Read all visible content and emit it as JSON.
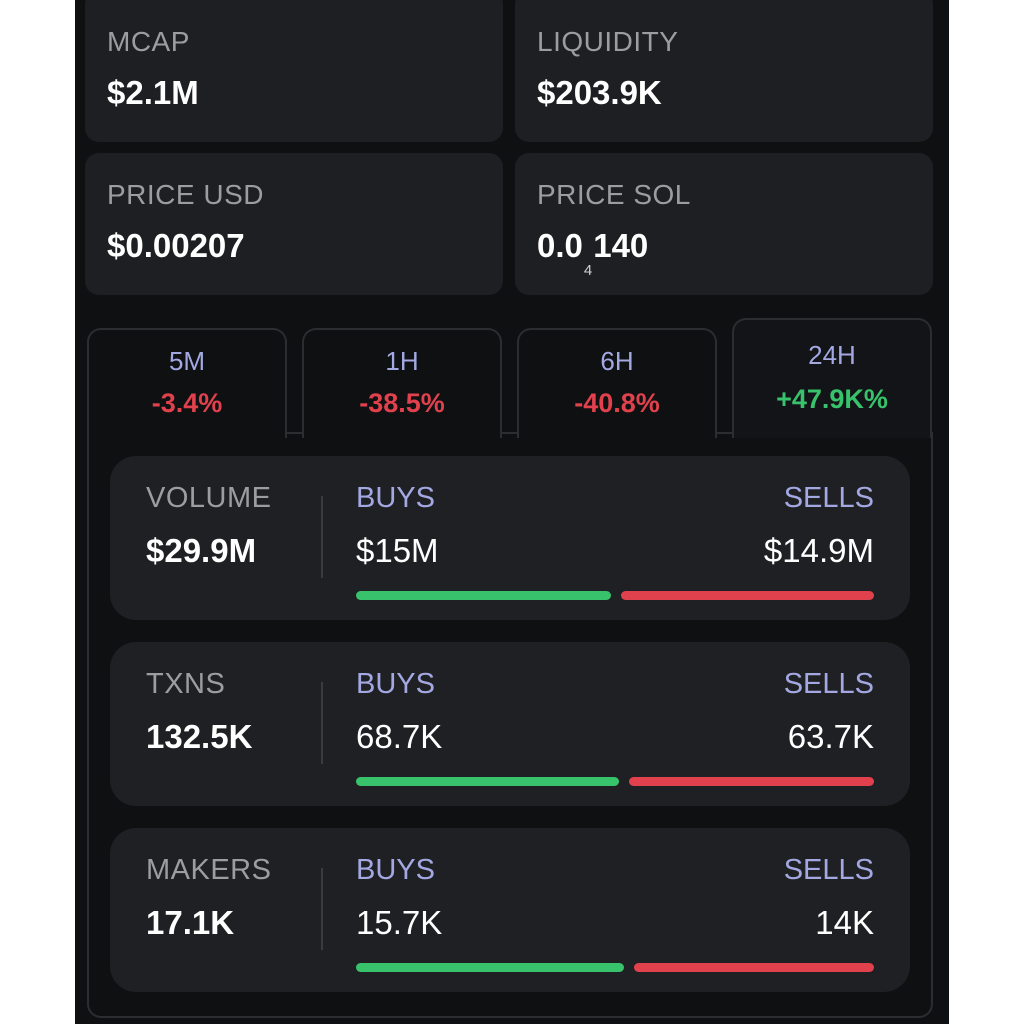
{
  "stats": {
    "mcap": {
      "label": "MCAP",
      "value": "$2.1M"
    },
    "liquidity": {
      "label": "LIQUIDITY",
      "value": "$203.9K"
    },
    "price_usd": {
      "label": "PRICE USD",
      "value": "$0.00207"
    },
    "price_sol": {
      "label": "PRICE SOL",
      "value_prefix": "0.0",
      "value_sub": "4",
      "value_suffix": "140"
    }
  },
  "tabs": [
    {
      "label": "5M",
      "change": "-3.4%",
      "direction": "negative",
      "active": false
    },
    {
      "label": "1H",
      "change": "-38.5%",
      "direction": "negative",
      "active": false
    },
    {
      "label": "6H",
      "change": "-40.8%",
      "direction": "negative",
      "active": false
    },
    {
      "label": "24H",
      "change": "+47.9K%",
      "direction": "positive",
      "active": true
    }
  ],
  "rows": [
    {
      "label": "VOLUME",
      "value": "$29.9M",
      "buys_label": "BUYS",
      "buys": "$15M",
      "sells_label": "SELLS",
      "sells": "$14.9M",
      "buy_ratio": 0.502
    },
    {
      "label": "TXNS",
      "value": "132.5K",
      "buys_label": "BUYS",
      "buys": "68.7K",
      "sells_label": "SELLS",
      "sells": "63.7K",
      "buy_ratio": 0.518
    },
    {
      "label": "MAKERS",
      "value": "17.1K",
      "buys_label": "BUYS",
      "buys": "15.7K",
      "sells_label": "SELLS",
      "sells": "14K",
      "buy_ratio": 0.528
    }
  ],
  "colors": {
    "background": "#0f1012",
    "card": "#1e1f22",
    "accent_label": "#a3a8e2",
    "positive": "#37c26b",
    "negative": "#e0414c"
  }
}
